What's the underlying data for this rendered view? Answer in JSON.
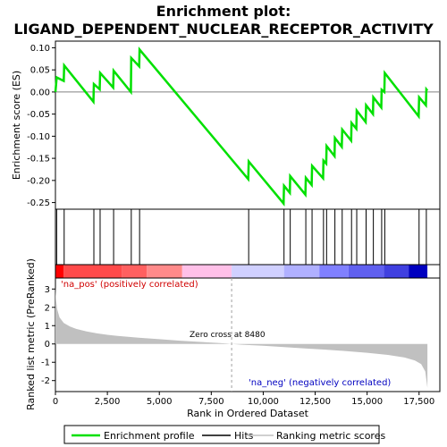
{
  "title_line1": "Enrichment plot:",
  "title_line2": "LIGAND_DEPENDENT_NUCLEAR_RECEPTOR_ACTIVITY",
  "es_panel": {
    "ylabel": "Enrichment score (ES)",
    "yticks": [
      "0.10",
      "0.05",
      "0.00",
      "-0.05",
      "-0.10",
      "-0.15",
      "-0.20",
      "-0.25"
    ],
    "ytick_values": [
      0.1,
      0.05,
      0.0,
      -0.05,
      -0.1,
      -0.15,
      -0.2,
      -0.25
    ],
    "ylim": [
      -0.265,
      0.115
    ]
  },
  "metric_panel": {
    "ylabel": "Ranked list metric (PreRanked)",
    "yticks": [
      "3",
      "2",
      "1",
      "0",
      "-1",
      "-2"
    ],
    "ytick_values": [
      3,
      2,
      1,
      0,
      -1,
      -2
    ],
    "ylim": [
      -2.6,
      3.6
    ],
    "pos_label": "'na_pos' (positively correlated)",
    "neg_label": "'na_neg' (negatively correlated)",
    "zero_cross_label": "Zero cross at 8480",
    "zero_cross": 8480
  },
  "xaxis": {
    "label": "Rank in Ordered Dataset",
    "ticks": [
      "0",
      "2,500",
      "5,000",
      "7,500",
      "10,000",
      "12,500",
      "15,000",
      "17,500"
    ],
    "tick_values": [
      0,
      2500,
      5000,
      7500,
      10000,
      12500,
      15000,
      17500
    ],
    "xlim": [
      0,
      18500
    ]
  },
  "legend": {
    "items": [
      {
        "label": "Enrichment profile",
        "color": "#00e000"
      },
      {
        "label": "Hits",
        "color": "#000000"
      },
      {
        "label": "Ranking metric scores",
        "color": "#c0c0c0"
      }
    ]
  },
  "chart_data": {
    "type": "line",
    "n_genes": 17900,
    "hits": [
      60,
      420,
      1850,
      2150,
      2800,
      3650,
      4050,
      9300,
      11000,
      11300,
      12050,
      12350,
      12900,
      13050,
      13450,
      13800,
      14250,
      14500,
      14950,
      15300,
      15700,
      15850,
      17500,
      17850
    ],
    "es_profile": [
      {
        "x": 0,
        "y": 0.0
      },
      {
        "x": 60,
        "y": 0.033
      },
      {
        "x": 400,
        "y": 0.025
      },
      {
        "x": 420,
        "y": 0.06
      },
      {
        "x": 1830,
        "y": -0.022
      },
      {
        "x": 1850,
        "y": 0.018
      },
      {
        "x": 2130,
        "y": 0.006
      },
      {
        "x": 2150,
        "y": 0.043
      },
      {
        "x": 2780,
        "y": 0.01
      },
      {
        "x": 2800,
        "y": 0.048
      },
      {
        "x": 3630,
        "y": 0.0
      },
      {
        "x": 3650,
        "y": 0.077
      },
      {
        "x": 4030,
        "y": 0.058
      },
      {
        "x": 4050,
        "y": 0.096
      },
      {
        "x": 9280,
        "y": -0.197
      },
      {
        "x": 9300,
        "y": -0.157
      },
      {
        "x": 10980,
        "y": -0.252
      },
      {
        "x": 11000,
        "y": -0.212
      },
      {
        "x": 11280,
        "y": -0.228
      },
      {
        "x": 11300,
        "y": -0.19
      },
      {
        "x": 12030,
        "y": -0.232
      },
      {
        "x": 12050,
        "y": -0.194
      },
      {
        "x": 12330,
        "y": -0.21
      },
      {
        "x": 12350,
        "y": -0.167
      },
      {
        "x": 12880,
        "y": -0.195
      },
      {
        "x": 12900,
        "y": -0.155
      },
      {
        "x": 13030,
        "y": -0.162
      },
      {
        "x": 13050,
        "y": -0.122
      },
      {
        "x": 13430,
        "y": -0.145
      },
      {
        "x": 13450,
        "y": -0.104
      },
      {
        "x": 13780,
        "y": -0.124
      },
      {
        "x": 13800,
        "y": -0.085
      },
      {
        "x": 14230,
        "y": -0.11
      },
      {
        "x": 14250,
        "y": -0.07
      },
      {
        "x": 14480,
        "y": -0.083
      },
      {
        "x": 14500,
        "y": -0.042
      },
      {
        "x": 14930,
        "y": -0.068
      },
      {
        "x": 14950,
        "y": -0.03
      },
      {
        "x": 15280,
        "y": -0.05
      },
      {
        "x": 15300,
        "y": -0.012
      },
      {
        "x": 15680,
        "y": -0.035
      },
      {
        "x": 15700,
        "y": 0.005
      },
      {
        "x": 15830,
        "y": 0.0
      },
      {
        "x": 15850,
        "y": 0.043
      },
      {
        "x": 17480,
        "y": -0.055
      },
      {
        "x": 17500,
        "y": -0.012
      },
      {
        "x": 17830,
        "y": -0.03
      },
      {
        "x": 17850,
        "y": 0.006
      },
      {
        "x": 17900,
        "y": 0.003
      }
    ],
    "metric_curve": [
      {
        "x": 0,
        "y": 3.1
      },
      {
        "x": 30,
        "y": 2.4
      },
      {
        "x": 80,
        "y": 1.9
      },
      {
        "x": 200,
        "y": 1.45
      },
      {
        "x": 400,
        "y": 1.15
      },
      {
        "x": 700,
        "y": 0.95
      },
      {
        "x": 1000,
        "y": 0.82
      },
      {
        "x": 1500,
        "y": 0.68
      },
      {
        "x": 2000,
        "y": 0.58
      },
      {
        "x": 2500,
        "y": 0.5
      },
      {
        "x": 3000,
        "y": 0.44
      },
      {
        "x": 3500,
        "y": 0.39
      },
      {
        "x": 4000,
        "y": 0.34
      },
      {
        "x": 5000,
        "y": 0.26
      },
      {
        "x": 6000,
        "y": 0.18
      },
      {
        "x": 7000,
        "y": 0.11
      },
      {
        "x": 8000,
        "y": 0.04
      },
      {
        "x": 8480,
        "y": 0.0
      },
      {
        "x": 9000,
        "y": -0.04
      },
      {
        "x": 10000,
        "y": -0.1
      },
      {
        "x": 11000,
        "y": -0.17
      },
      {
        "x": 12000,
        "y": -0.24
      },
      {
        "x": 13000,
        "y": -0.31
      },
      {
        "x": 14000,
        "y": -0.39
      },
      {
        "x": 15000,
        "y": -0.48
      },
      {
        "x": 16000,
        "y": -0.6
      },
      {
        "x": 16800,
        "y": -0.74
      },
      {
        "x": 17300,
        "y": -0.9
      },
      {
        "x": 17600,
        "y": -1.1
      },
      {
        "x": 17800,
        "y": -1.5
      },
      {
        "x": 17900,
        "y": -2.4
      }
    ],
    "color_band": [
      {
        "x0": 0,
        "x1": 400,
        "color": "#ff0000"
      },
      {
        "x0": 400,
        "x1": 3200,
        "color": "#ff4a4a"
      },
      {
        "x0": 3200,
        "x1": 4400,
        "color": "#ff6060"
      },
      {
        "x0": 4400,
        "x1": 6100,
        "color": "#ff8a8a"
      },
      {
        "x0": 6100,
        "x1": 8480,
        "color": "#ffc0e8"
      },
      {
        "x0": 8480,
        "x1": 11000,
        "color": "#d0d0ff"
      },
      {
        "x0": 11000,
        "x1": 12700,
        "color": "#b0b0ff"
      },
      {
        "x0": 12700,
        "x1": 14100,
        "color": "#8080ff"
      },
      {
        "x0": 14100,
        "x1": 15800,
        "color": "#6060f0"
      },
      {
        "x0": 15800,
        "x1": 17000,
        "color": "#4040e0"
      },
      {
        "x0": 17000,
        "x1": 17900,
        "color": "#0000c0"
      }
    ]
  }
}
